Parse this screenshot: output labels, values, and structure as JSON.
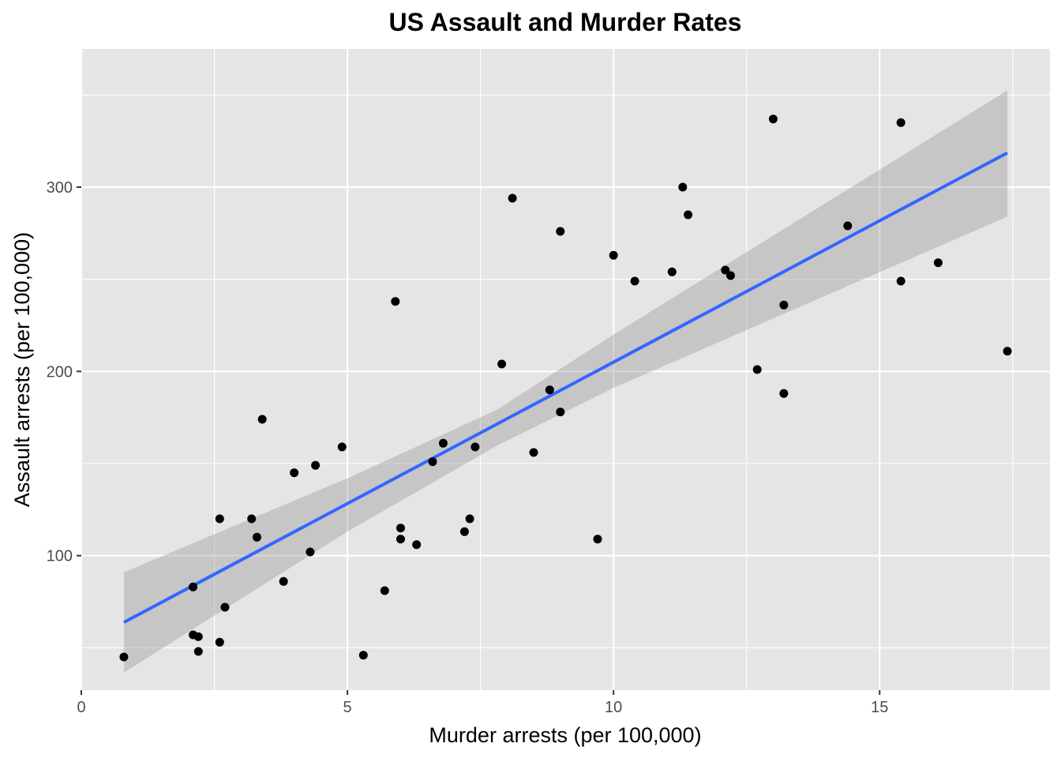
{
  "chart_data": {
    "type": "scatter",
    "title": "US Assault and Murder Rates",
    "xlabel": "Murder arrests (per 100,000)",
    "ylabel": "Assault arrests (per 100,000)",
    "xlim": [
      0,
      18.2
    ],
    "ylim": [
      27,
      375
    ],
    "x_ticks": [
      0,
      5,
      10,
      15
    ],
    "x_tick_labels": [
      "0",
      "5",
      "10",
      "15"
    ],
    "y_ticks": [
      100,
      200,
      300
    ],
    "y_tick_labels": [
      "100",
      "200",
      "300"
    ],
    "grid": true,
    "legend": "none",
    "colors": {
      "panel_background": "#e5e5e5",
      "grid": "#ffffff",
      "points": "#000000",
      "fit_line": "#3366ff",
      "confidence_band": "#999999"
    },
    "points": {
      "x": [
        13.2,
        10.0,
        8.1,
        8.8,
        9.0,
        7.9,
        3.3,
        5.9,
        15.4,
        17.4,
        5.3,
        2.6,
        10.4,
        7.2,
        2.2,
        6.0,
        9.7,
        15.4,
        2.1,
        11.3,
        4.4,
        12.1,
        2.7,
        16.1,
        9.0,
        6.0,
        4.3,
        12.2,
        2.1,
        7.4,
        11.4,
        11.1,
        13.0,
        0.8,
        7.3,
        6.6,
        4.9,
        6.3,
        3.4,
        14.4,
        3.8,
        13.2,
        12.7,
        3.2,
        2.2,
        8.5,
        4.0,
        5.7,
        2.6,
        6.8
      ],
      "y": [
        236,
        263,
        294,
        190,
        276,
        204,
        110,
        238,
        335,
        211,
        46,
        120,
        249,
        113,
        56,
        115,
        109,
        249,
        83,
        300,
        149,
        255,
        72,
        259,
        178,
        109,
        102,
        252,
        57,
        159,
        285,
        254,
        337,
        45,
        120,
        151,
        159,
        106,
        174,
        279,
        86,
        188,
        201,
        120,
        48,
        156,
        145,
        81,
        53,
        161
      ]
    },
    "fit": {
      "method": "lm",
      "x": [
        0.8,
        17.4
      ],
      "y": [
        63.8,
        318.6
      ]
    },
    "confidence_band": {
      "x": [
        0.8,
        5,
        7.8,
        10,
        17.4
      ],
      "lower": [
        36.5,
        113.0,
        159.5,
        191.0,
        284.0
      ],
      "upper": [
        91.0,
        142.0,
        179.0,
        220.0,
        352.5
      ]
    }
  }
}
